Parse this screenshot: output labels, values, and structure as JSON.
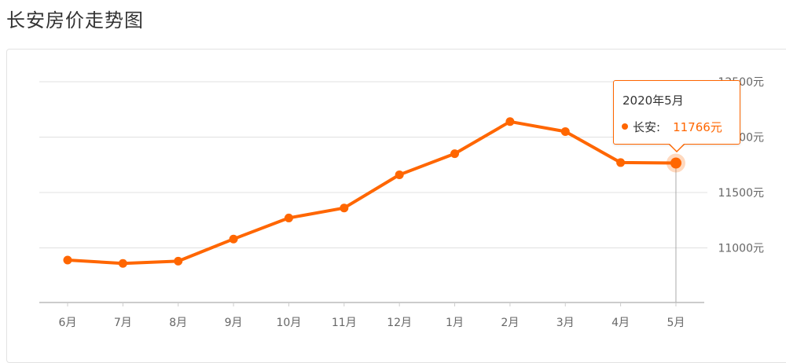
{
  "page": {
    "title": "长安房价走势图"
  },
  "colors": {
    "line": "#ff6600",
    "grid": "#e0e0e0",
    "axis": "#cccccc"
  },
  "tooltip": {
    "date": "2020年5月",
    "series_label": "长安:",
    "value_label": "11766元"
  },
  "chart_data": {
    "type": "line",
    "categories": [
      "6月",
      "7月",
      "8月",
      "9月",
      "10月",
      "11月",
      "12月",
      "1月",
      "2月",
      "3月",
      "4月",
      "5月"
    ],
    "series": [
      {
        "name": "长安",
        "values": [
          10890,
          10860,
          10880,
          11080,
          11270,
          11360,
          11660,
          11850,
          12140,
          12050,
          11770,
          11766
        ]
      }
    ],
    "ylim": [
      10500,
      12500
    ],
    "yticks": [
      11000,
      11500,
      12000,
      12500
    ],
    "ytick_labels": [
      "11000元",
      "11500元",
      "12000元",
      "12500元"
    ],
    "grid": true,
    "highlighted_index": 11
  }
}
